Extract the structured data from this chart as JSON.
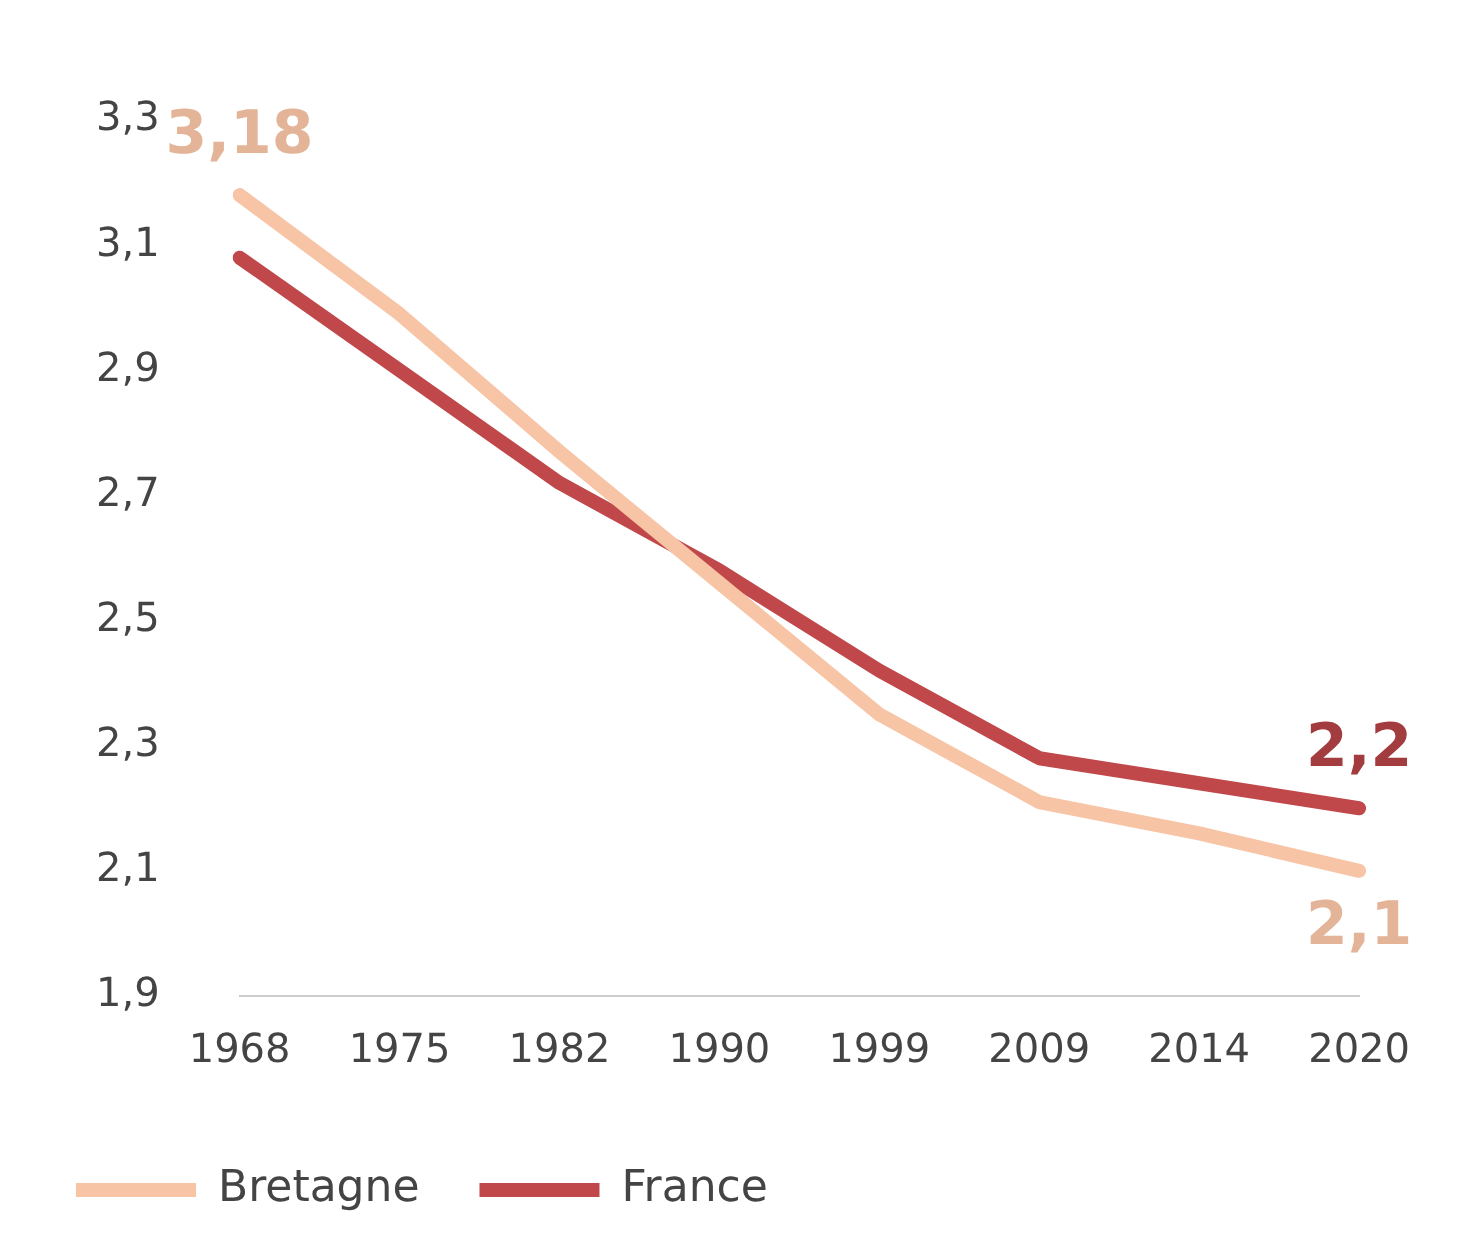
{
  "chart_data": {
    "type": "line",
    "categories": [
      "1968",
      "1975",
      "1982",
      "1990",
      "1999",
      "2009",
      "2014",
      "2020"
    ],
    "series": [
      {
        "name": "Bretagne",
        "color": "#f7c4a5",
        "values": [
          3.18,
          2.99,
          2.77,
          2.56,
          2.35,
          2.21,
          2.16,
          2.1
        ],
        "value_labels": [
          "3,18",
          null,
          null,
          null,
          null,
          null,
          null,
          "2,1"
        ]
      },
      {
        "name": "France",
        "color": "#c0474a",
        "values": [
          3.08,
          2.9,
          2.72,
          2.58,
          2.42,
          2.28,
          2.24,
          2.2
        ],
        "value_labels": [
          null,
          null,
          null,
          null,
          null,
          null,
          null,
          "2,2"
        ]
      }
    ],
    "ylim": [
      1.9,
      3.3
    ],
    "yticks": [
      {
        "value": 1.9,
        "label": "1,9"
      },
      {
        "value": 2.1,
        "label": "2,1"
      },
      {
        "value": 2.3,
        "label": "2,3"
      },
      {
        "value": 2.5,
        "label": "2,5"
      },
      {
        "value": 2.7,
        "label": "2,7"
      },
      {
        "value": 2.9,
        "label": "2,9"
      },
      {
        "value": 3.1,
        "label": "3,1"
      },
      {
        "value": 3.3,
        "label": "3,3"
      }
    ],
    "grid": false,
    "legend": "bottom left",
    "marker": "none",
    "line_style": "solid"
  }
}
